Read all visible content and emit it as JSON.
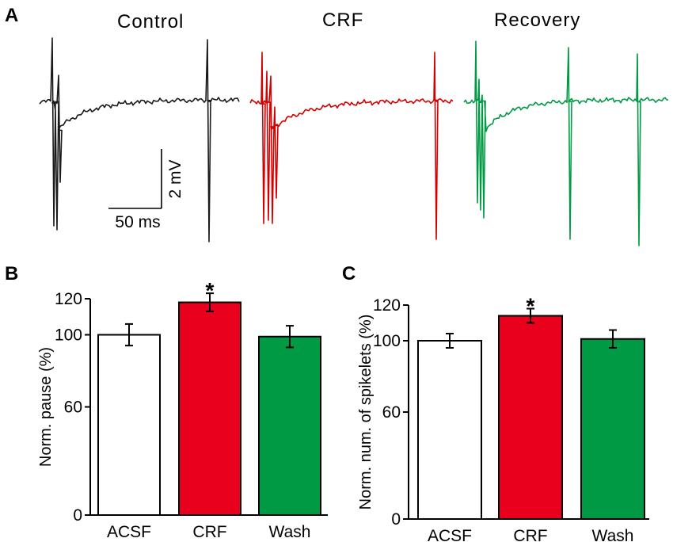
{
  "panels": {
    "a": {
      "letter": "A"
    },
    "b": {
      "letter": "B"
    },
    "c": {
      "letter": "C"
    }
  },
  "traces": [
    {
      "name": "trace-control",
      "title": "Control",
      "color": "#1a1a1a"
    },
    {
      "name": "trace-crf",
      "title": "CRF",
      "color": "#d40000"
    },
    {
      "name": "trace-recovery",
      "title": "Recovery",
      "color": "#009a44"
    }
  ],
  "scale_bar": {
    "voltage_label": "2 mV",
    "time_label": "50 ms"
  },
  "chart_data": [
    {
      "type": "bar",
      "panel": "B",
      "categories": [
        "ACSF",
        "CRF",
        "Wash"
      ],
      "values": [
        100,
        118,
        99
      ],
      "errors": [
        6,
        5,
        6
      ],
      "colors": [
        "#ffffff",
        "#e8001c",
        "#009a44"
      ],
      "significance": [
        "",
        "*",
        ""
      ],
      "ylabel": "Norm. pause (%)",
      "ylim": [
        0,
        120
      ],
      "yticks": [
        0,
        60,
        100,
        120
      ],
      "ytick_labels": [
        "0",
        "60",
        "100",
        "120"
      ]
    },
    {
      "type": "bar",
      "panel": "C",
      "categories": [
        "ACSF",
        "CRF",
        "Wash"
      ],
      "values": [
        100,
        114,
        101
      ],
      "errors": [
        4,
        4,
        5
      ],
      "colors": [
        "#ffffff",
        "#e8001c",
        "#009a44"
      ],
      "significance": [
        "",
        "*",
        ""
      ],
      "ylabel": "Norm. num. of spikelets (%)",
      "ylim": [
        0,
        120
      ],
      "yticks": [
        0,
        60,
        100,
        120
      ],
      "ytick_labels": [
        "0",
        "60",
        "100",
        "120"
      ]
    }
  ]
}
